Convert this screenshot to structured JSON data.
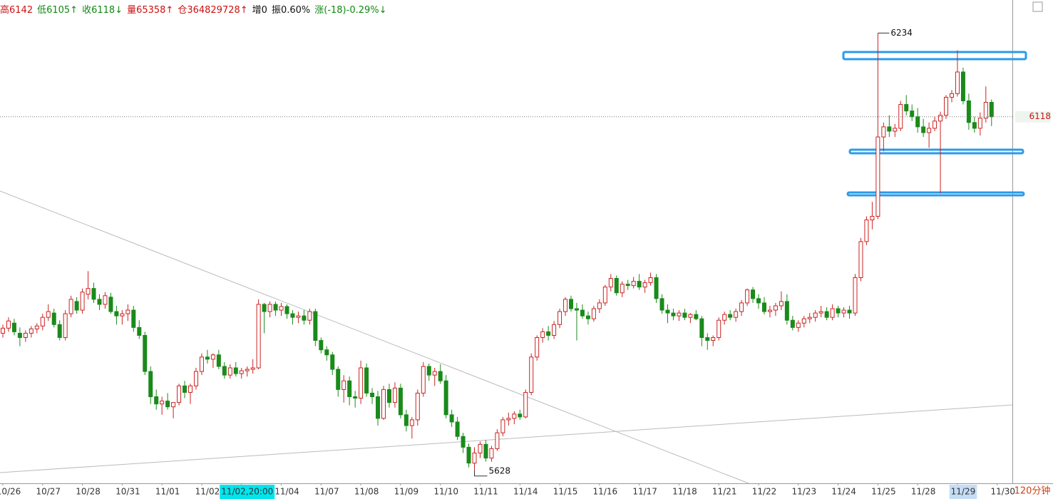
{
  "chart_data": {
    "type": "candlestick",
    "header": [
      {
        "text": "高6142",
        "color": "#cc1111"
      },
      {
        "text": "低6105↑",
        "color": "#118811"
      },
      {
        "text": "收6118↓",
        "color": "#118811"
      },
      {
        "text": "量65358↑",
        "color": "#cc1111"
      },
      {
        "text": "仓364829728↑",
        "color": "#cc1111"
      },
      {
        "text": "增0",
        "color": "#111111"
      },
      {
        "text": "振0.60%",
        "color": "#111111"
      },
      {
        "text": "涨(-18)-0.29%↓",
        "color": "#118811"
      }
    ],
    "period": "120分钟",
    "up_color": "#cc2222",
    "down_color": "#1a8a1a",
    "ylim": [
      5610,
      6260
    ],
    "xticks": [
      {
        "value": 0,
        "label": "10/26"
      },
      {
        "value": 7,
        "label": "10/27"
      },
      {
        "value": 14,
        "label": "10/28"
      },
      {
        "value": 21,
        "label": "10/31"
      },
      {
        "value": 28,
        "label": "11/01"
      },
      {
        "value": 35,
        "label": "11/02"
      },
      {
        "value": 42,
        "label": "11/02,20:00"
      },
      {
        "value": 49,
        "label": "11/04"
      },
      {
        "value": 56,
        "label": "11/07"
      },
      {
        "value": 63,
        "label": "11/08"
      },
      {
        "value": 70,
        "label": "11/09"
      },
      {
        "value": 77,
        "label": "11/10"
      },
      {
        "value": 84,
        "label": "11/11"
      },
      {
        "value": 91,
        "label": "11/14"
      },
      {
        "value": 98,
        "label": "11/15"
      },
      {
        "value": 105,
        "label": "11/16"
      },
      {
        "value": 112,
        "label": "11/17"
      },
      {
        "value": 119,
        "label": "11/18"
      },
      {
        "value": 126,
        "label": "11/21"
      },
      {
        "value": 133,
        "label": "11/22"
      },
      {
        "value": 140,
        "label": "11/23"
      },
      {
        "value": 147,
        "label": "11/24"
      },
      {
        "value": 154,
        "label": "11/25"
      },
      {
        "value": 161,
        "label": "11/28"
      },
      {
        "value": 168,
        "label": "11/29"
      },
      {
        "value": 175,
        "label": "11/30"
      }
    ],
    "candles": [
      [
        5818,
        5830,
        5812,
        5825
      ],
      [
        5825,
        5840,
        5820,
        5835
      ],
      [
        5832,
        5838,
        5815,
        5820
      ],
      [
        5818,
        5826,
        5800,
        5812
      ],
      [
        5812,
        5822,
        5806,
        5818
      ],
      [
        5818,
        5828,
        5812,
        5824
      ],
      [
        5824,
        5832,
        5818,
        5828
      ],
      [
        5828,
        5845,
        5822,
        5840
      ],
      [
        5840,
        5858,
        5835,
        5848
      ],
      [
        5846,
        5852,
        5826,
        5830
      ],
      [
        5830,
        5836,
        5808,
        5812
      ],
      [
        5812,
        5850,
        5808,
        5845
      ],
      [
        5845,
        5870,
        5840,
        5865
      ],
      [
        5862,
        5868,
        5845,
        5850
      ],
      [
        5850,
        5880,
        5845,
        5875
      ],
      [
        5872,
        5904,
        5865,
        5880
      ],
      [
        5880,
        5888,
        5860,
        5865
      ],
      [
        5865,
        5872,
        5850,
        5858
      ],
      [
        5858,
        5875,
        5852,
        5870
      ],
      [
        5868,
        5874,
        5845,
        5848
      ],
      [
        5848,
        5856,
        5830,
        5842
      ],
      [
        5842,
        5850,
        5830,
        5845
      ],
      [
        5845,
        5858,
        5835,
        5850
      ],
      [
        5850,
        5856,
        5820,
        5826
      ],
      [
        5826,
        5836,
        5810,
        5815
      ],
      [
        5815,
        5820,
        5760,
        5765
      ],
      [
        5765,
        5772,
        5720,
        5730
      ],
      [
        5730,
        5740,
        5712,
        5720
      ],
      [
        5720,
        5730,
        5705,
        5724
      ],
      [
        5724,
        5735,
        5712,
        5716
      ],
      [
        5716,
        5722,
        5700,
        5722
      ],
      [
        5722,
        5748,
        5718,
        5745
      ],
      [
        5745,
        5752,
        5728,
        5736
      ],
      [
        5736,
        5748,
        5720,
        5745
      ],
      [
        5745,
        5770,
        5740,
        5765
      ],
      [
        5765,
        5790,
        5760,
        5785
      ],
      [
        5785,
        5795,
        5776,
        5782
      ],
      [
        5782,
        5790,
        5770,
        5788
      ],
      [
        5788,
        5795,
        5768,
        5772
      ],
      [
        5772,
        5778,
        5755,
        5760
      ],
      [
        5760,
        5775,
        5755,
        5770
      ],
      [
        5770,
        5778,
        5758,
        5762
      ],
      [
        5762,
        5770,
        5755,
        5766
      ],
      [
        5766,
        5772,
        5758,
        5768
      ],
      [
        5768,
        5782,
        5762,
        5770
      ],
      [
        5770,
        5865,
        5768,
        5858
      ],
      [
        5858,
        5860,
        5818,
        5848
      ],
      [
        5848,
        5862,
        5840,
        5858
      ],
      [
        5858,
        5862,
        5842,
        5850
      ],
      [
        5850,
        5860,
        5842,
        5855
      ],
      [
        5855,
        5858,
        5838,
        5845
      ],
      [
        5845,
        5850,
        5830,
        5840
      ],
      [
        5840,
        5848,
        5832,
        5842
      ],
      [
        5842,
        5850,
        5830,
        5836
      ],
      [
        5836,
        5852,
        5830,
        5848
      ],
      [
        5848,
        5852,
        5800,
        5808
      ],
      [
        5808,
        5812,
        5790,
        5795
      ],
      [
        5795,
        5800,
        5780,
        5788
      ],
      [
        5788,
        5792,
        5760,
        5768
      ],
      [
        5768,
        5772,
        5730,
        5740
      ],
      [
        5740,
        5760,
        5722,
        5752
      ],
      [
        5752,
        5758,
        5718,
        5730
      ],
      [
        5730,
        5738,
        5715,
        5728
      ],
      [
        5728,
        5780,
        5720,
        5770
      ],
      [
        5770,
        5776,
        5730,
        5735
      ],
      [
        5735,
        5742,
        5720,
        5730
      ],
      [
        5730,
        5738,
        5690,
        5700
      ],
      [
        5700,
        5745,
        5698,
        5740
      ],
      [
        5740,
        5748,
        5715,
        5722
      ],
      [
        5722,
        5750,
        5715,
        5742
      ],
      [
        5742,
        5748,
        5700,
        5705
      ],
      [
        5705,
        5712,
        5682,
        5690
      ],
      [
        5690,
        5702,
        5672,
        5698
      ],
      [
        5698,
        5740,
        5690,
        5735
      ],
      [
        5735,
        5778,
        5730,
        5772
      ],
      [
        5772,
        5776,
        5752,
        5760
      ],
      [
        5760,
        5770,
        5745,
        5765
      ],
      [
        5765,
        5775,
        5748,
        5752
      ],
      [
        5752,
        5760,
        5700,
        5705
      ],
      [
        5705,
        5712,
        5688,
        5695
      ],
      [
        5695,
        5702,
        5670,
        5675
      ],
      [
        5675,
        5680,
        5652,
        5660
      ],
      [
        5660,
        5665,
        5632,
        5638
      ],
      [
        5638,
        5660,
        5628,
        5652
      ],
      [
        5652,
        5668,
        5645,
        5664
      ],
      [
        5664,
        5670,
        5640,
        5645
      ],
      [
        5645,
        5662,
        5640,
        5658
      ],
      [
        5658,
        5685,
        5655,
        5680
      ],
      [
        5680,
        5702,
        5675,
        5698
      ],
      [
        5698,
        5708,
        5690,
        5700
      ],
      [
        5700,
        5710,
        5692,
        5706
      ],
      [
        5706,
        5712,
        5698,
        5702
      ],
      [
        5702,
        5740,
        5700,
        5736
      ],
      [
        5736,
        5790,
        5732,
        5785
      ],
      [
        5785,
        5815,
        5780,
        5812
      ],
      [
        5812,
        5825,
        5805,
        5820
      ],
      [
        5820,
        5828,
        5808,
        5815
      ],
      [
        5815,
        5835,
        5810,
        5830
      ],
      [
        5830,
        5852,
        5825,
        5848
      ],
      [
        5848,
        5868,
        5842,
        5865
      ],
      [
        5865,
        5870,
        5848,
        5852
      ],
      [
        5852,
        5860,
        5808,
        5850
      ],
      [
        5850,
        5858,
        5838,
        5842
      ],
      [
        5842,
        5848,
        5830,
        5838
      ],
      [
        5838,
        5856,
        5834,
        5852
      ],
      [
        5852,
        5865,
        5846,
        5860
      ],
      [
        5860,
        5885,
        5856,
        5882
      ],
      [
        5882,
        5900,
        5876,
        5894
      ],
      [
        5894,
        5898,
        5870,
        5874
      ],
      [
        5874,
        5890,
        5868,
        5886
      ],
      [
        5886,
        5892,
        5878,
        5884
      ],
      [
        5884,
        5896,
        5880,
        5890
      ],
      [
        5890,
        5900,
        5878,
        5882
      ],
      [
        5882,
        5892,
        5874,
        5888
      ],
      [
        5888,
        5902,
        5884,
        5895
      ],
      [
        5895,
        5900,
        5860,
        5866
      ],
      [
        5866,
        5872,
        5845,
        5850
      ],
      [
        5850,
        5858,
        5832,
        5846
      ],
      [
        5846,
        5852,
        5836,
        5842
      ],
      [
        5842,
        5850,
        5835,
        5846
      ],
      [
        5846,
        5852,
        5836,
        5840
      ],
      [
        5840,
        5846,
        5832,
        5844
      ],
      [
        5844,
        5850,
        5836,
        5838
      ],
      [
        5838,
        5842,
        5800,
        5812
      ],
      [
        5812,
        5818,
        5795,
        5808
      ],
      [
        5808,
        5815,
        5800,
        5812
      ],
      [
        5812,
        5840,
        5808,
        5836
      ],
      [
        5836,
        5848,
        5830,
        5844
      ],
      [
        5844,
        5850,
        5836,
        5840
      ],
      [
        5840,
        5852,
        5834,
        5848
      ],
      [
        5848,
        5864,
        5842,
        5860
      ],
      [
        5860,
        5880,
        5856,
        5878
      ],
      [
        5878,
        5882,
        5860,
        5866
      ],
      [
        5866,
        5872,
        5852,
        5860
      ],
      [
        5860,
        5868,
        5844,
        5848
      ],
      [
        5848,
        5856,
        5840,
        5850
      ],
      [
        5850,
        5860,
        5842,
        5856
      ],
      [
        5856,
        5876,
        5850,
        5862
      ],
      [
        5862,
        5872,
        5830,
        5836
      ],
      [
        5836,
        5842,
        5822,
        5826
      ],
      [
        5826,
        5836,
        5820,
        5832
      ],
      [
        5832,
        5842,
        5826,
        5838
      ],
      [
        5838,
        5846,
        5832,
        5840
      ],
      [
        5840,
        5850,
        5834,
        5846
      ],
      [
        5846,
        5856,
        5840,
        5848
      ],
      [
        5848,
        5854,
        5836,
        5840
      ],
      [
        5840,
        5858,
        5836,
        5852
      ],
      [
        5852,
        5856,
        5840,
        5846
      ],
      [
        5846,
        5854,
        5840,
        5850
      ],
      [
        5850,
        5856,
        5838,
        5846
      ],
      [
        5846,
        5900,
        5842,
        5895
      ],
      [
        5895,
        5950,
        5890,
        5945
      ],
      [
        5945,
        5980,
        5940,
        5975
      ],
      [
        5975,
        6000,
        5962,
        5980
      ],
      [
        5980,
        6234,
        5976,
        6090
      ],
      [
        6090,
        6110,
        6070,
        6104
      ],
      [
        6104,
        6120,
        6090,
        6098
      ],
      [
        6098,
        6108,
        6090,
        6102
      ],
      [
        6102,
        6140,
        6098,
        6135
      ],
      [
        6135,
        6148,
        6120,
        6126
      ],
      [
        6126,
        6135,
        6112,
        6118
      ],
      [
        6118,
        6130,
        6096,
        6104
      ],
      [
        6104,
        6115,
        6090,
        6096
      ],
      [
        6096,
        6110,
        6075,
        6102
      ],
      [
        6102,
        6118,
        6098,
        6112
      ],
      [
        6112,
        6125,
        6012,
        6120
      ],
      [
        6120,
        6148,
        6115,
        6145
      ],
      [
        6145,
        6155,
        6138,
        6150
      ],
      [
        6150,
        6210,
        6146,
        6180
      ],
      [
        6180,
        6186,
        6135,
        6140
      ],
      [
        6140,
        6150,
        6100,
        6110
      ],
      [
        6110,
        6118,
        6096,
        6102
      ],
      [
        6102,
        6124,
        6092,
        6116
      ],
      [
        6116,
        6160,
        6110,
        6138
      ],
      [
        6138,
        6142,
        6105,
        6118
      ]
    ]
  }
}
